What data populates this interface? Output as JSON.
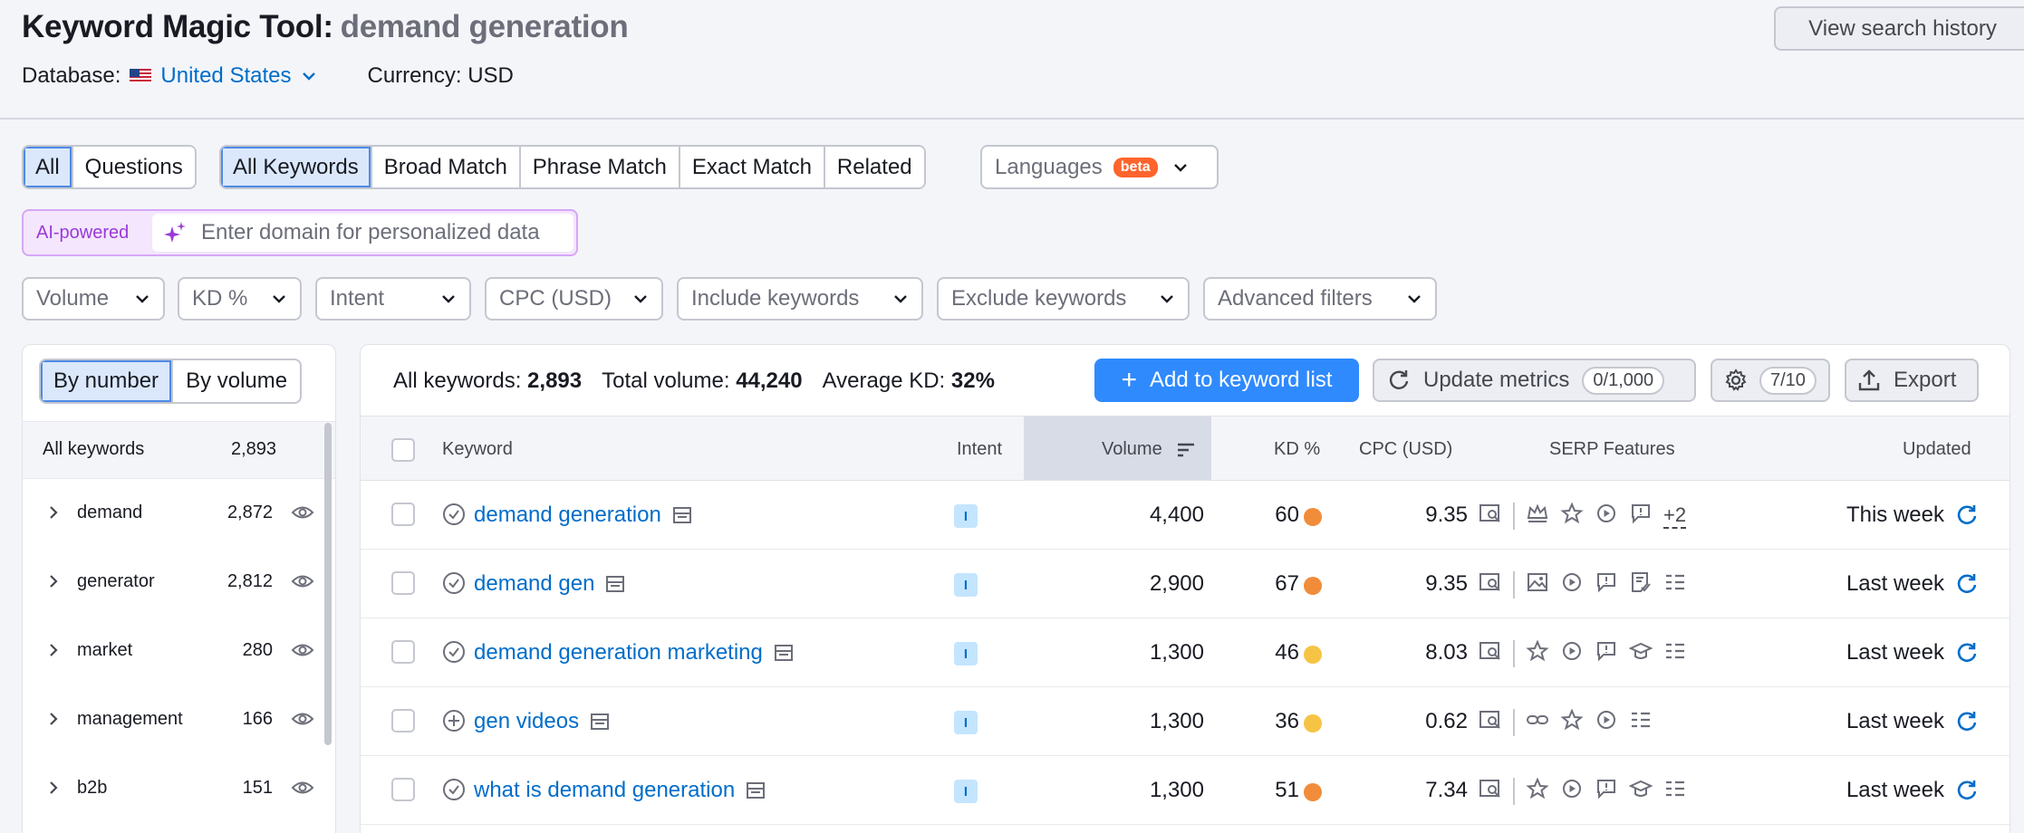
{
  "header": {
    "title": "Keyword Magic Tool:",
    "query": "demand generation",
    "database_label": "Database:",
    "database_value": "United States",
    "currency": "Currency: USD",
    "view_history": "View search history"
  },
  "filters": {
    "type_tabs": [
      "All",
      "Questions"
    ],
    "match_tabs": [
      "All Keywords",
      "Broad Match",
      "Phrase Match",
      "Exact Match",
      "Related"
    ],
    "languages": "Languages",
    "beta": "beta",
    "ai_label": "AI-powered",
    "ai_placeholder": "Enter domain for personalized data",
    "dropdowns": [
      "Volume",
      "KD %",
      "Intent",
      "CPC (USD)",
      "Include keywords",
      "Exclude keywords",
      "Advanced filters"
    ]
  },
  "left_panel": {
    "seg": [
      "By number",
      "By volume"
    ],
    "all_label": "All keywords",
    "all_count": "2,893",
    "groups": [
      {
        "label": "demand",
        "count": "2,872"
      },
      {
        "label": "generator",
        "count": "2,812"
      },
      {
        "label": "market",
        "count": "280"
      },
      {
        "label": "management",
        "count": "166"
      },
      {
        "label": "b2b",
        "count": "151"
      }
    ]
  },
  "summary": {
    "all_label": "All keywords:",
    "all_value": "2,893",
    "vol_label": "Total volume:",
    "vol_value": "44,240",
    "kd_label": "Average KD:",
    "kd_value": "32%"
  },
  "toolbar": {
    "add": "Add to keyword list",
    "update": "Update metrics",
    "update_count": "0/1,000",
    "settings_count": "7/10",
    "export": "Export"
  },
  "table": {
    "columns": [
      "Keyword",
      "Intent",
      "Volume",
      "KD %",
      "CPC (USD)",
      "SERP Features",
      "Updated"
    ],
    "rows": [
      {
        "keyword": "demand generation",
        "intent": "I",
        "volume": "4,400",
        "kd": "60",
        "kd_color": "#f18c3a",
        "cpc": "9.35",
        "updated": "This week",
        "more": "+2"
      },
      {
        "keyword": "demand gen",
        "intent": "I",
        "volume": "2,900",
        "kd": "67",
        "kd_color": "#f18c3a",
        "cpc": "9.35",
        "updated": "Last week",
        "more": ""
      },
      {
        "keyword": "demand generation marketing",
        "intent": "I",
        "volume": "1,300",
        "kd": "46",
        "kd_color": "#f6c445",
        "cpc": "8.03",
        "updated": "Last week",
        "more": ""
      },
      {
        "keyword": "gen videos",
        "intent": "I",
        "volume": "1,300",
        "kd": "36",
        "kd_color": "#f6c445",
        "cpc": "0.62",
        "updated": "Last week",
        "more": ""
      },
      {
        "keyword": "what is demand generation",
        "intent": "I",
        "volume": "1,300",
        "kd": "51",
        "kd_color": "#f18c3a",
        "cpc": "7.34",
        "updated": "Last week",
        "more": ""
      }
    ]
  }
}
